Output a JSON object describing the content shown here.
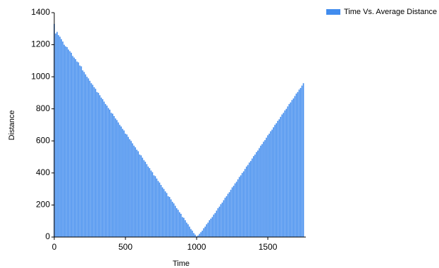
{
  "chart_data": {
    "type": "bar",
    "xlabel": "Time",
    "ylabel": "Distance",
    "xlim": [
      0,
      1767
    ],
    "xticks": [
      0,
      500,
      1000,
      1500
    ],
    "ylim": [
      0,
      1400
    ],
    "yticks": [
      0,
      200,
      400,
      600,
      800,
      1000,
      1200,
      1400
    ],
    "legend": "top-right",
    "x": [
      0,
      10,
      20,
      30,
      40,
      50,
      60,
      70,
      80,
      90,
      100,
      110,
      120,
      130,
      140,
      150,
      160,
      170,
      180,
      190,
      200,
      210,
      220,
      230,
      240,
      250,
      260,
      270,
      280,
      290,
      300,
      310,
      320,
      330,
      340,
      350,
      360,
      370,
      380,
      390,
      400,
      410,
      420,
      430,
      440,
      450,
      460,
      470,
      480,
      490,
      500,
      510,
      520,
      530,
      540,
      550,
      560,
      570,
      580,
      590,
      600,
      610,
      620,
      630,
      640,
      650,
      660,
      670,
      680,
      690,
      700,
      710,
      720,
      730,
      740,
      750,
      760,
      770,
      780,
      790,
      800,
      810,
      820,
      830,
      840,
      850,
      860,
      870,
      880,
      890,
      900,
      910,
      920,
      930,
      940,
      950,
      960,
      970,
      980,
      990,
      1000,
      1010,
      1020,
      1030,
      1040,
      1050,
      1060,
      1070,
      1080,
      1090,
      1100,
      1110,
      1120,
      1130,
      1140,
      1150,
      1160,
      1170,
      1180,
      1190,
      1200,
      1210,
      1220,
      1230,
      1240,
      1250,
      1260,
      1270,
      1280,
      1290,
      1300,
      1310,
      1320,
      1330,
      1340,
      1350,
      1360,
      1370,
      1380,
      1390,
      1400,
      1410,
      1420,
      1430,
      1440,
      1450,
      1460,
      1470,
      1480,
      1490,
      1500,
      1510,
      1520,
      1530,
      1540,
      1550,
      1560,
      1570,
      1580,
      1590,
      1600,
      1610,
      1620,
      1630,
      1640,
      1650,
      1660,
      1670,
      1680,
      1690,
      1700,
      1710,
      1720,
      1730,
      1740,
      1750
    ],
    "series": [
      {
        "name": "Time Vs. Average Distance",
        "color": "#418cee",
        "values": [
          1330,
          1270,
          1280,
          1260,
          1250,
          1235,
          1220,
          1200,
          1190,
          1185,
          1170,
          1160,
          1150,
          1130,
          1120,
          1110,
          1095,
          1090,
          1070,
          1065,
          1040,
          1030,
          1015,
          1000,
          990,
          975,
          960,
          950,
          935,
          925,
          905,
          900,
          885,
          870,
          860,
          845,
          830,
          820,
          805,
          795,
          775,
          770,
          755,
          740,
          730,
          715,
          700,
          690,
          675,
          665,
          645,
          640,
          625,
          610,
          600,
          585,
          570,
          560,
          545,
          535,
          515,
          510,
          495,
          480,
          470,
          455,
          440,
          430,
          415,
          405,
          385,
          380,
          365,
          350,
          340,
          325,
          310,
          300,
          285,
          275,
          255,
          250,
          235,
          220,
          210,
          195,
          180,
          170,
          155,
          145,
          125,
          120,
          105,
          90,
          80,
          65,
          50,
          40,
          25,
          15,
          5,
          10,
          20,
          30,
          40,
          55,
          65,
          80,
          90,
          105,
          115,
          125,
          140,
          150,
          165,
          180,
          190,
          205,
          215,
          230,
          245,
          255,
          270,
          280,
          295,
          310,
          320,
          335,
          345,
          360,
          375,
          385,
          400,
          410,
          425,
          440,
          450,
          465,
          475,
          490,
          505,
          515,
          530,
          540,
          555,
          570,
          580,
          595,
          605,
          620,
          635,
          645,
          660,
          670,
          685,
          700,
          710,
          725,
          735,
          750,
          765,
          775,
          790,
          800,
          815,
          830,
          840,
          855,
          865,
          880,
          895,
          905,
          920,
          930,
          945,
          960
        ]
      }
    ]
  }
}
